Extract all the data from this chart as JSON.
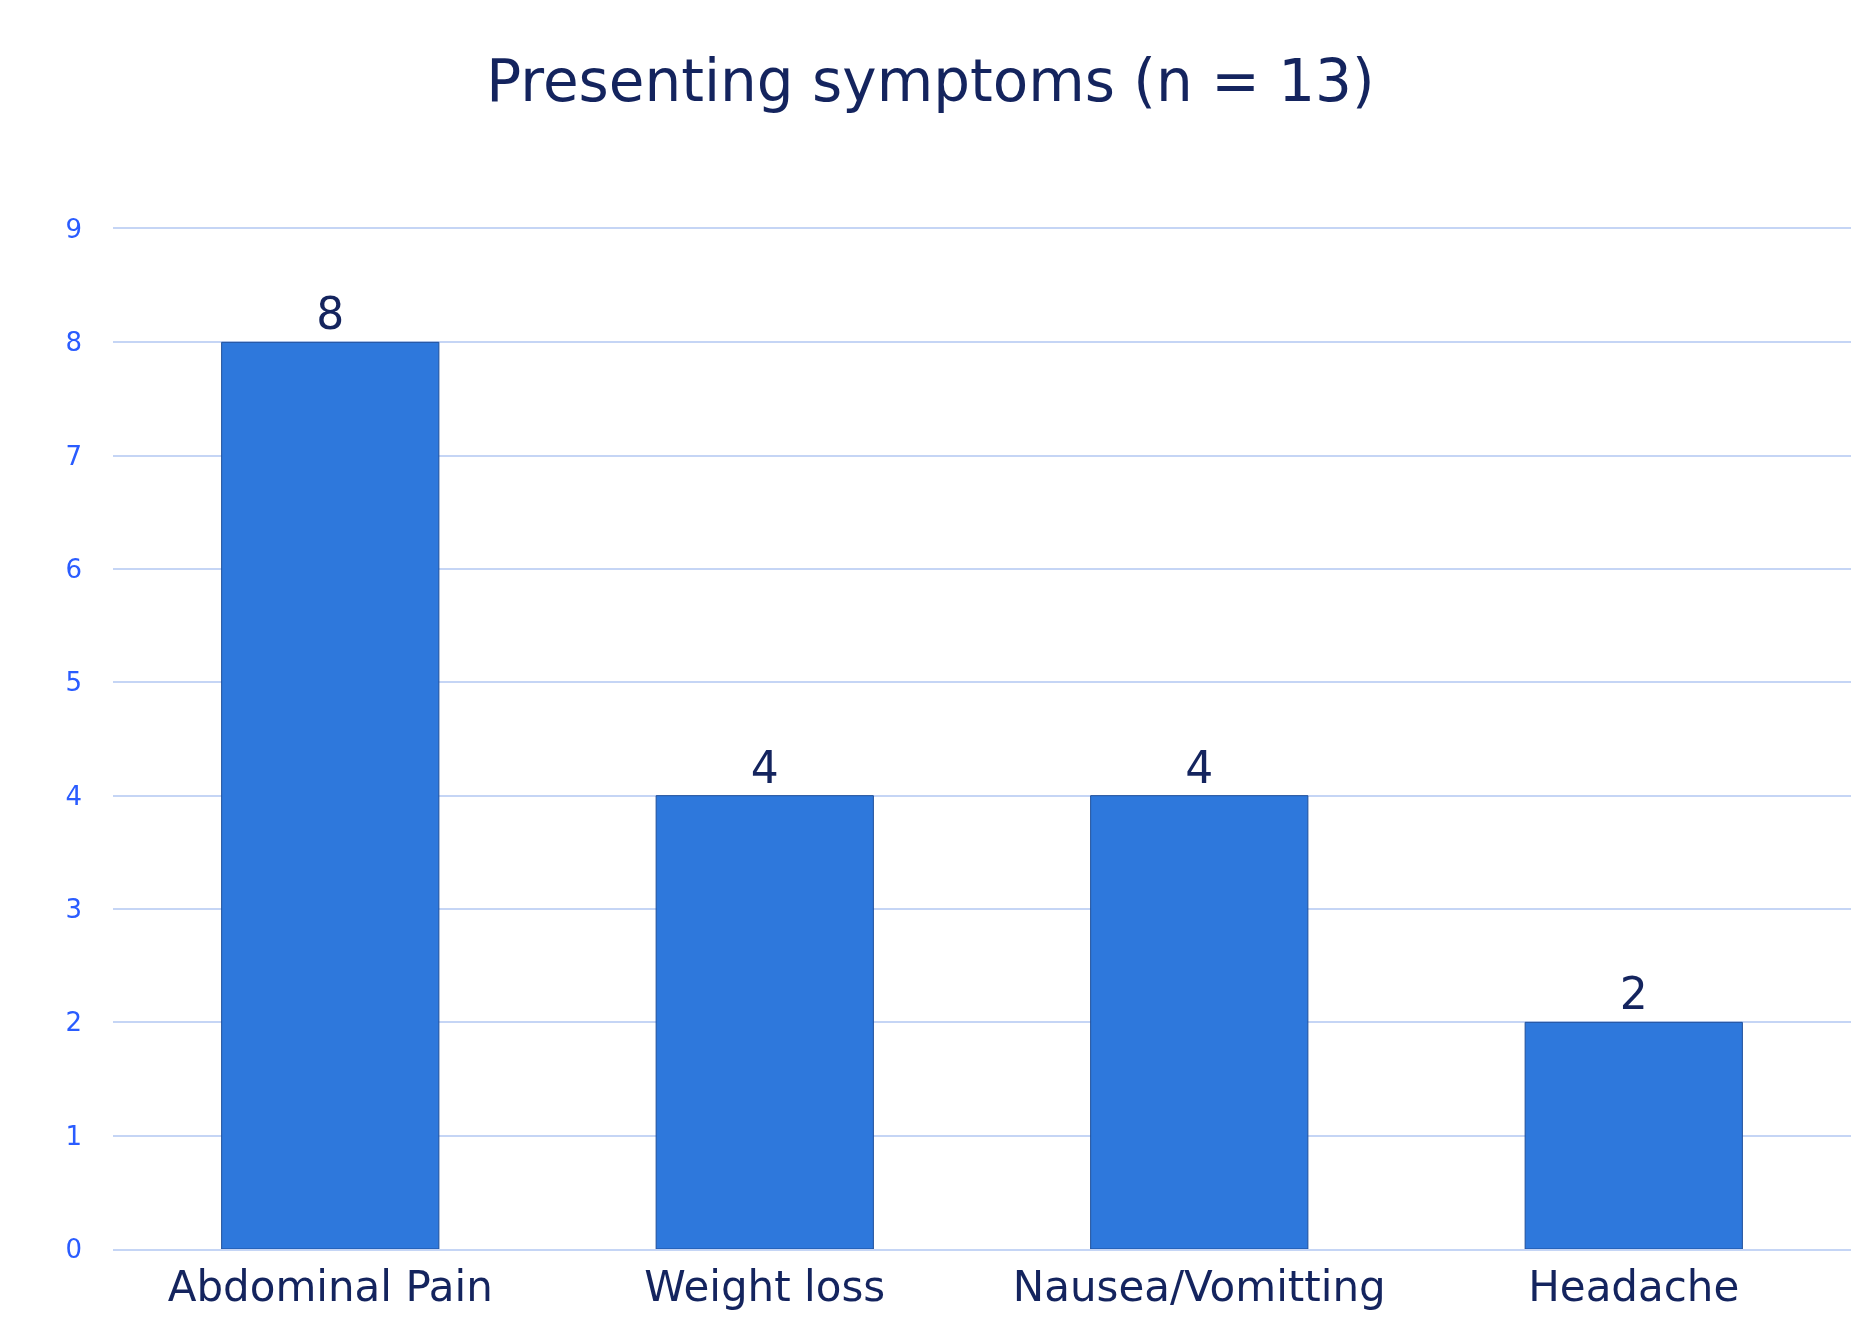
{
  "chart_data": {
    "type": "bar",
    "title": "Presenting symptoms (n = 13)",
    "categories": [
      "Abdominal Pain",
      "Weight loss",
      "Nausea/Vomitting",
      "Headache"
    ],
    "values": [
      8,
      4,
      4,
      2
    ],
    "color": "#2e78dc",
    "ylim": [
      0,
      9
    ],
    "yticks": [
      0,
      1,
      2,
      3,
      4,
      5,
      6,
      7,
      8,
      9
    ],
    "grid": "y",
    "data_labels": true
  }
}
